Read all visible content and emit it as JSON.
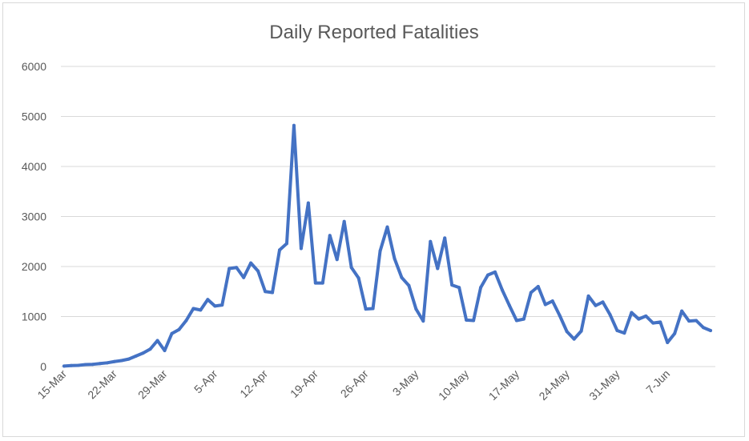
{
  "chart_data": {
    "type": "line",
    "title": "Daily Reported Fatalities",
    "xlabel": "",
    "ylabel": "",
    "ylim": [
      0,
      6000
    ],
    "yticks": [
      0,
      1000,
      2000,
      3000,
      4000,
      5000,
      6000
    ],
    "grid": true,
    "legend": "none",
    "color": "#4472c4",
    "xtick_labels": [
      {
        "index": 0,
        "label": "15-Mar"
      },
      {
        "index": 7,
        "label": "22-Mar"
      },
      {
        "index": 14,
        "label": "29-Mar"
      },
      {
        "index": 21,
        "label": "5-Apr"
      },
      {
        "index": 28,
        "label": "12-Apr"
      },
      {
        "index": 35,
        "label": "19-Apr"
      },
      {
        "index": 42,
        "label": "26-Apr"
      },
      {
        "index": 49,
        "label": "3-May"
      },
      {
        "index": 56,
        "label": "10-May"
      },
      {
        "index": 63,
        "label": "17-May"
      },
      {
        "index": 70,
        "label": "24-May"
      },
      {
        "index": 77,
        "label": "31-May"
      },
      {
        "index": 84,
        "label": "7-Jun"
      }
    ],
    "values": [
      10,
      20,
      25,
      40,
      45,
      60,
      75,
      100,
      120,
      150,
      210,
      270,
      350,
      520,
      320,
      660,
      740,
      920,
      1160,
      1130,
      1340,
      1210,
      1230,
      1960,
      1980,
      1780,
      2070,
      1910,
      1500,
      1480,
      2330,
      2460,
      4820,
      2360,
      3270,
      1670,
      1670,
      2620,
      2140,
      2900,
      1980,
      1770,
      1150,
      1160,
      2310,
      2790,
      2160,
      1780,
      1620,
      1150,
      910,
      2500,
      1960,
      2570,
      1630,
      1580,
      930,
      920,
      1580,
      1830,
      1890,
      1530,
      1220,
      920,
      950,
      1480,
      1600,
      1240,
      1310,
      1020,
      700,
      550,
      710,
      1410,
      1220,
      1290,
      1040,
      720,
      670,
      1080,
      950,
      1010,
      870,
      890,
      480,
      660,
      1110,
      910,
      920,
      780,
      720
    ]
  }
}
